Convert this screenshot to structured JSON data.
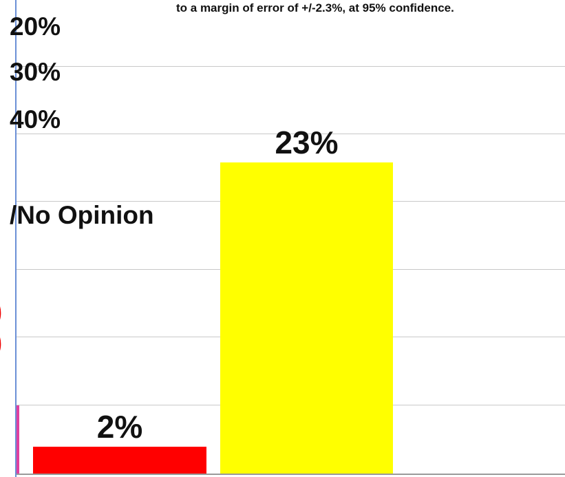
{
  "header_note": "to a margin of error of +/-2.3%, at 95% confidence.",
  "left_labels": [
    "20%",
    "30%",
    "40%"
  ],
  "category_label": "/No Opinion",
  "colors": {
    "bar_red": "#ff0000",
    "bar_yellow": "#ffff00",
    "accent": "#e040a0",
    "grid": "#c8c8c8",
    "axis": "#6b8fd6"
  },
  "chart_data": {
    "type": "bar",
    "categories": [
      "",
      ""
    ],
    "values": [
      2,
      23
    ],
    "data_labels": [
      "2%",
      "23%"
    ],
    "colors": [
      "#ff0000",
      "#ffff00"
    ],
    "title": "",
    "xlabel": "",
    "ylabel": "",
    "grid": true
  }
}
